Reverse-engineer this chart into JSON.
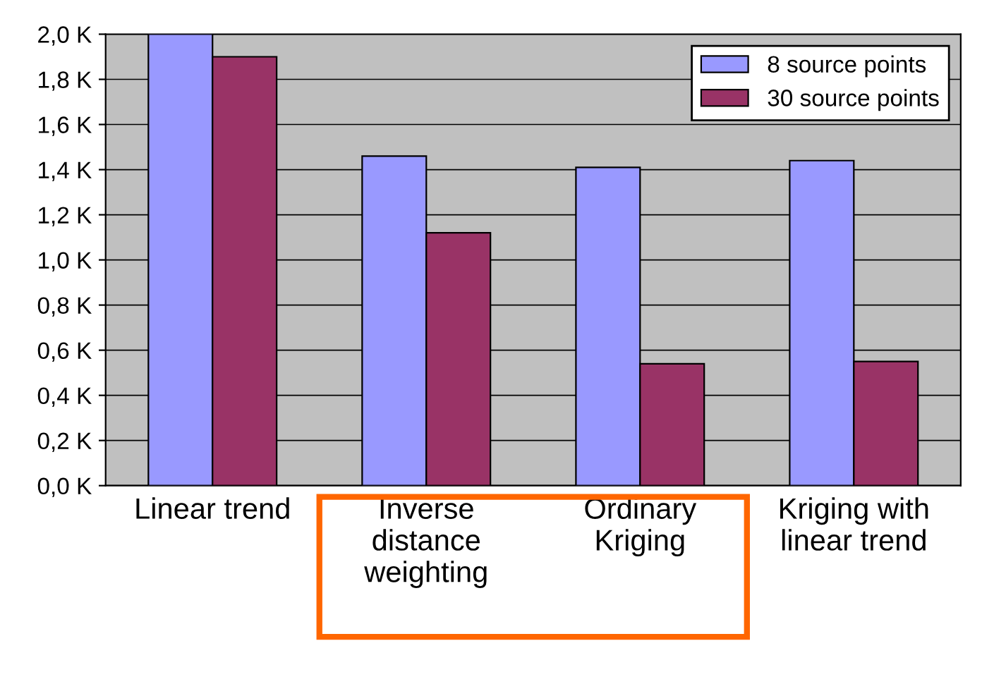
{
  "chart_data": {
    "type": "bar",
    "categories": [
      "Linear trend",
      "Inverse\ndistance\nweighting",
      "Ordinary\nKriging",
      "Kriging with\nlinear trend"
    ],
    "series": [
      {
        "name": "8 source points",
        "color": "#9999ff",
        "values": [
          2.0,
          1.46,
          1.41,
          1.44
        ]
      },
      {
        "name": "30 source points",
        "color": "#993366",
        "values": [
          1.9,
          1.12,
          0.54,
          0.55
        ]
      }
    ],
    "ylim": [
      0,
      2.0
    ],
    "yticks": [
      {
        "value": 0,
        "label": "0,0 K"
      },
      {
        "value": 0.2,
        "label": "0,2 K"
      },
      {
        "value": 0.4,
        "label": "0,4 K"
      },
      {
        "value": 0.6,
        "label": "0,6 K"
      },
      {
        "value": 0.8,
        "label": "0,8 K"
      },
      {
        "value": 1.0,
        "label": "1,0 K"
      },
      {
        "value": 1.2,
        "label": "1,2 K"
      },
      {
        "value": 1.4,
        "label": "1,4 K"
      },
      {
        "value": 1.6,
        "label": "1,6 K"
      },
      {
        "value": 1.8,
        "label": "1,8 K"
      },
      {
        "value": 2.0,
        "label": "2,0 K"
      }
    ],
    "grid": "y",
    "legend": "top right"
  }
}
